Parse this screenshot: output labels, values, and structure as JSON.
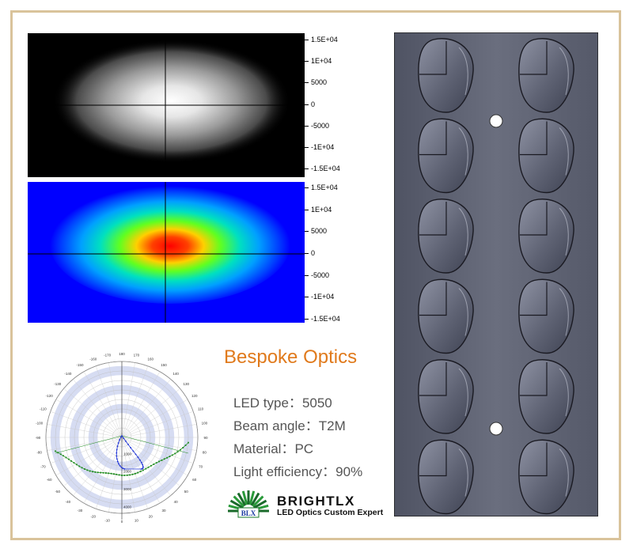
{
  "intensity_map": {
    "axis_ticks": [
      "1.5E+04",
      "1E+04",
      "5000",
      "0",
      "-5000",
      "-1E+04",
      "-1.5E+04"
    ]
  },
  "polar_plot": {
    "angle_labels": [
      "-170",
      "180",
      "170",
      "-160",
      "160",
      "-150",
      "150",
      "-140",
      "140",
      "-130",
      "130",
      "-120",
      "120",
      "-110",
      "110",
      "-100",
      "100",
      "-90",
      "90",
      "-80",
      "80",
      "-70",
      "70",
      "-60",
      "60",
      "-50",
      "50",
      "-40",
      "40",
      "-30",
      "30",
      "-20",
      "20",
      "-10",
      "10",
      "0"
    ],
    "radial_labels": [
      "1000",
      "2000",
      "3000",
      "4000"
    ],
    "colors": {
      "blue_curve": "#1a2fd6",
      "green_curve": "#1a8a1a"
    }
  },
  "product": {
    "title": "Bespoke Optics",
    "specs": [
      {
        "label": "LED type：",
        "value": "5050"
      },
      {
        "label": "Beam angle：",
        "value": "T2M"
      },
      {
        "label": "Material：",
        "value": "PC"
      },
      {
        "label": "Light efficiency：",
        "value": "90%"
      }
    ]
  },
  "logo": {
    "mark_text": "BLX",
    "brand": "BRIGHTLX",
    "tagline": "LED Optics Custom Expert"
  },
  "colors": {
    "frame": "#d9c39b",
    "title": "#e07a1c",
    "panel": "#5c6070"
  }
}
